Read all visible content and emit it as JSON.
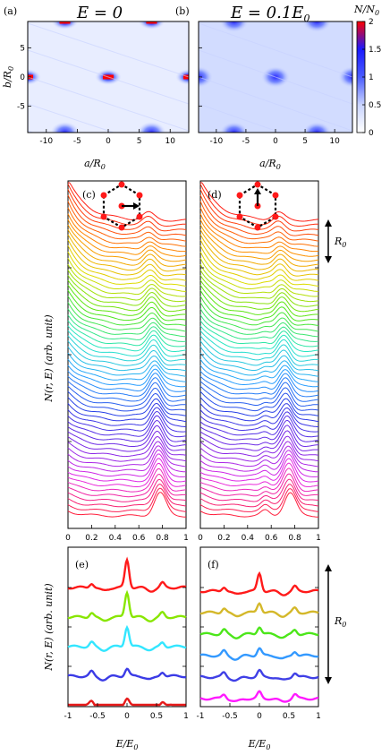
{
  "panels": {
    "a": {
      "label": "(a)",
      "title": "E = 0"
    },
    "b": {
      "label": "(b)",
      "title": "E = 0.1E",
      "title_sub": "0"
    },
    "c": {
      "label": "(c)"
    },
    "d": {
      "label": "(d)"
    },
    "e": {
      "label": "(e)"
    },
    "f": {
      "label": "(f)"
    }
  },
  "colorbar": {
    "label": "N/N",
    "label_sub": "0",
    "ticks": [
      "0",
      "0.5",
      "1",
      "1.5",
      "2"
    ],
    "colors": [
      "#ffffff",
      "#c9d4ff",
      "#4a5cff",
      "#1a1aff",
      "#ff0000"
    ]
  },
  "axes": {
    "map_xlabel": "a/R",
    "map_xlabel_sub": "0",
    "map_ylabel": "b/R",
    "map_ylabel_sub": "0",
    "map_xticks": [
      "-10",
      "-5",
      "0",
      "5",
      "10"
    ],
    "map_yticks": [
      "5",
      "0",
      "-5"
    ],
    "mid_ylabel": "N(r, E) (arb. unit)",
    "mid_xticks": [
      "0",
      "0.2",
      "0.4",
      "0.6",
      "0.8",
      "1"
    ],
    "scale_label": "R",
    "scale_sub": "0",
    "bot_xlabel": "E/E",
    "bot_xlabel_sub": "0",
    "bot_xticks": [
      "-1",
      "-0.5",
      "0",
      "0.5",
      "1"
    ],
    "bot_scale_label": "R",
    "bot_scale_sub": "0"
  },
  "chart_data": [
    {
      "type": "heatmap",
      "panel": "a",
      "xlim": [
        -13,
        13
      ],
      "ylim": [
        -9.5,
        9.5
      ],
      "zlim": [
        0,
        2
      ],
      "spots": [
        [
          -7,
          9.5,
          2
        ],
        [
          7,
          9.5,
          2
        ],
        [
          -13,
          0,
          2
        ],
        [
          0,
          0,
          2
        ],
        [
          13,
          0,
          2
        ],
        [
          -7,
          -9.5,
          1.2
        ],
        [
          7,
          -9.5,
          1.2
        ]
      ]
    },
    {
      "type": "heatmap",
      "panel": "b",
      "xlim": [
        -13,
        13
      ],
      "ylim": [
        -9.5,
        9.5
      ],
      "zlim": [
        0,
        2
      ],
      "spots": [
        [
          -7,
          9.5,
          1.0
        ],
        [
          7,
          9.5,
          1.0
        ],
        [
          -13,
          0,
          1.0
        ],
        [
          0,
          0,
          1.0
        ],
        [
          13,
          0,
          1.0
        ],
        [
          -7,
          -9.5,
          1.0
        ],
        [
          7,
          -9.5,
          1.0
        ]
      ]
    },
    {
      "type": "line",
      "panel": "c",
      "xlim": [
        0,
        1
      ],
      "n_curves": 60,
      "peak_x": 0.78
    },
    {
      "type": "line",
      "panel": "d",
      "xlim": [
        0,
        1
      ],
      "n_curves": 60,
      "peak_x": 0.76
    },
    {
      "type": "line",
      "panel": "e",
      "xlim": [
        -1,
        1
      ],
      "series": [
        {
          "color": "#ff1a1a",
          "peak": 2.2
        },
        {
          "color": "#88e600",
          "peak": 2.0
        },
        {
          "color": "#33e6ff",
          "peak": 1.6
        },
        {
          "color": "#3b3be6",
          "peak": 0.6
        },
        {
          "color": "#e61a1a",
          "peak": 0.5
        }
      ]
    },
    {
      "type": "line",
      "panel": "f",
      "xlim": [
        -1,
        1
      ],
      "series": [
        {
          "color": "#ff1a1a",
          "peak": 1.4
        },
        {
          "color": "#d4b82a",
          "peak": 0.8
        },
        {
          "color": "#4ce61a",
          "peak": 0.6
        },
        {
          "color": "#3399ff",
          "peak": 0.6
        },
        {
          "color": "#4040e6",
          "peak": 0.5
        },
        {
          "color": "#ff1aff",
          "peak": 0.5
        }
      ]
    }
  ]
}
